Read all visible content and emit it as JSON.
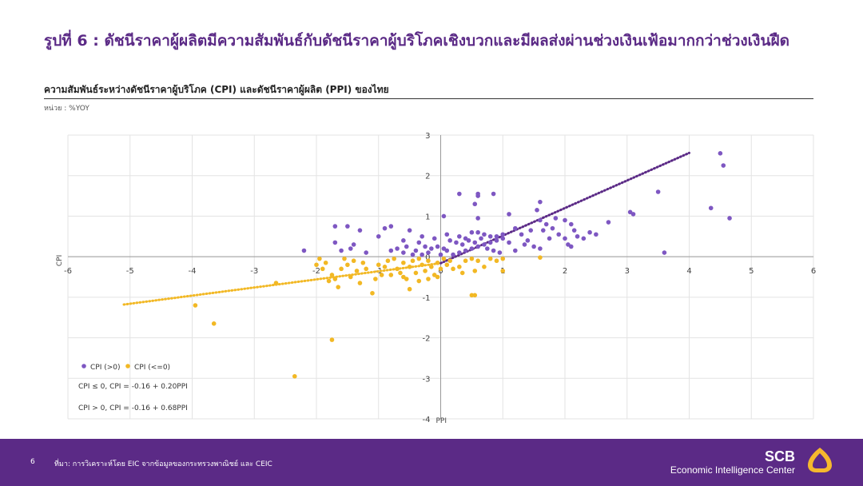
{
  "header": {
    "title": "รูปที่ 6 : ดัชนีราคาผู้ผลิตมีความสัมพันธ์กับดัชนีราคาผู้บริโภคเชิงบวกและมีผลส่งผ่านช่วงเงินเฟ้อมากกว่าช่วงเงินฝืด",
    "subtitle": "ความสัมพันธ์ระหว่างดัชนีราคาผู้บริโภค (CPI) และดัชนีราคาผู้ผลิต (PPI) ของไทย",
    "unit": "หน่วย : %YOY"
  },
  "footer": {
    "page": "6",
    "source": "ที่มา: การวิเคราะห์โดย EIC จากข้อมูลของกระทรวงพาณิชย์ และ CEIC",
    "brand": "SCB",
    "brand_sub": "Economic Intelligence Center"
  },
  "colors": {
    "purple": "#7e57c2",
    "gold": "#f2b824",
    "brand": "#5b2a86",
    "logo_gold": "#f5b82e"
  },
  "chart_data": {
    "type": "scatter",
    "xlabel": "PPI",
    "ylabel": "CPI",
    "xlim": [
      -6,
      6
    ],
    "ylim": [
      -4,
      3
    ],
    "xticks": [
      -6,
      -5,
      -4,
      -3,
      -2,
      -1,
      0,
      1,
      2,
      3,
      4,
      5,
      6
    ],
    "yticks": [
      -4,
      -3,
      -2,
      -1,
      0,
      1,
      2,
      3
    ],
    "grid": true,
    "legend_position": "bottom-left",
    "series": [
      {
        "name": "CPI (>0)",
        "color": "#7e57c2",
        "points": [
          [
            -2.2,
            0.15
          ],
          [
            -1.7,
            0.75
          ],
          [
            -1.5,
            0.75
          ],
          [
            -1.7,
            0.35
          ],
          [
            -1.6,
            0.15
          ],
          [
            -1.45,
            0.2
          ],
          [
            -1.3,
            0.65
          ],
          [
            -1.4,
            0.3
          ],
          [
            -1.2,
            0.1
          ],
          [
            -1.0,
            0.5
          ],
          [
            -0.8,
            0.15
          ],
          [
            -0.7,
            0.2
          ],
          [
            -0.6,
            0.1
          ],
          [
            -0.55,
            0.25
          ],
          [
            -0.45,
            0.05
          ],
          [
            -0.9,
            0.7
          ],
          [
            -0.8,
            0.75
          ],
          [
            -0.4,
            0.15
          ],
          [
            -0.3,
            0.05
          ],
          [
            -0.2,
            0.1
          ],
          [
            -0.1,
            0.45
          ],
          [
            -0.05,
            0.25
          ],
          [
            0.0,
            0.05
          ],
          [
            0.05,
            0.2
          ],
          [
            0.1,
            0.15
          ],
          [
            -0.35,
            0.35
          ],
          [
            -0.6,
            0.4
          ],
          [
            -0.25,
            0.25
          ],
          [
            -0.15,
            0.2
          ],
          [
            -0.5,
            0.65
          ],
          [
            -0.3,
            0.5
          ],
          [
            0.1,
            0.55
          ],
          [
            0.2,
            0.05
          ],
          [
            0.3,
            0.1
          ],
          [
            0.4,
            0.15
          ],
          [
            0.5,
            0.2
          ],
          [
            0.6,
            0.25
          ],
          [
            0.7,
            0.3
          ],
          [
            0.8,
            0.35
          ],
          [
            0.9,
            0.4
          ],
          [
            1.0,
            0.45
          ],
          [
            0.3,
            0.5
          ],
          [
            0.4,
            0.45
          ],
          [
            0.5,
            0.6
          ],
          [
            0.6,
            0.6
          ],
          [
            0.7,
            0.55
          ],
          [
            0.8,
            0.5
          ],
          [
            0.9,
            0.5
          ],
          [
            1.0,
            0.55
          ],
          [
            0.45,
            0.4
          ],
          [
            0.55,
            0.35
          ],
          [
            0.65,
            0.45
          ],
          [
            0.75,
            0.2
          ],
          [
            0.85,
            0.15
          ],
          [
            0.95,
            0.1
          ],
          [
            0.35,
            0.3
          ],
          [
            0.25,
            0.35
          ],
          [
            0.15,
            0.4
          ],
          [
            0.05,
            1.0
          ],
          [
            0.3,
            1.55
          ],
          [
            0.6,
            1.55
          ],
          [
            0.85,
            1.55
          ],
          [
            0.6,
            1.5
          ],
          [
            0.55,
            1.3
          ],
          [
            0.6,
            0.95
          ],
          [
            1.1,
            1.05
          ],
          [
            1.2,
            0.7
          ],
          [
            1.3,
            0.55
          ],
          [
            1.4,
            0.4
          ],
          [
            1.5,
            0.25
          ],
          [
            1.6,
            0.2
          ],
          [
            1.6,
            1.35
          ],
          [
            1.55,
            1.15
          ],
          [
            1.6,
            0.9
          ],
          [
            1.7,
            0.8
          ],
          [
            1.8,
            0.7
          ],
          [
            1.9,
            0.55
          ],
          [
            2.0,
            0.9
          ],
          [
            2.1,
            0.8
          ],
          [
            2.15,
            0.65
          ],
          [
            2.2,
            0.5
          ],
          [
            2.3,
            0.45
          ],
          [
            2.4,
            0.6
          ],
          [
            2.5,
            0.55
          ],
          [
            2.0,
            0.45
          ],
          [
            2.05,
            0.3
          ],
          [
            2.1,
            0.25
          ],
          [
            1.85,
            0.95
          ],
          [
            1.65,
            0.65
          ],
          [
            1.75,
            0.45
          ],
          [
            1.45,
            0.65
          ],
          [
            1.35,
            0.3
          ],
          [
            1.2,
            0.15
          ],
          [
            1.1,
            0.35
          ],
          [
            2.7,
            0.85
          ],
          [
            3.05,
            1.1
          ],
          [
            3.1,
            1.05
          ],
          [
            3.5,
            1.6
          ],
          [
            3.6,
            0.1
          ],
          [
            4.35,
            1.2
          ],
          [
            4.5,
            2.55
          ],
          [
            4.55,
            2.25
          ],
          [
            4.65,
            0.95
          ]
        ]
      },
      {
        "name": "CPI (<=0)",
        "color": "#f2b824",
        "points": [
          [
            -3.95,
            -1.2
          ],
          [
            -3.65,
            -1.65
          ],
          [
            -2.65,
            -0.65
          ],
          [
            -2.35,
            -2.95
          ],
          [
            -1.75,
            -2.05
          ],
          [
            -1.85,
            -0.15
          ],
          [
            -1.9,
            -0.3
          ],
          [
            -1.8,
            -0.6
          ],
          [
            -1.7,
            -0.55
          ],
          [
            -1.65,
            -0.75
          ],
          [
            -1.6,
            -0.3
          ],
          [
            -1.5,
            -0.2
          ],
          [
            -1.45,
            -0.5
          ],
          [
            -1.4,
            -0.1
          ],
          [
            -1.3,
            -0.65
          ],
          [
            -1.2,
            -0.3
          ],
          [
            -1.1,
            -0.9
          ],
          [
            -1.05,
            -0.55
          ],
          [
            -1.0,
            -0.2
          ],
          [
            -0.9,
            -0.25
          ],
          [
            -0.85,
            -0.1
          ],
          [
            -0.8,
            -0.45
          ],
          [
            -0.75,
            -0.05
          ],
          [
            -0.7,
            -0.3
          ],
          [
            -0.6,
            -0.15
          ],
          [
            -0.55,
            -0.55
          ],
          [
            -0.5,
            -0.25
          ],
          [
            -0.45,
            -0.1
          ],
          [
            -0.4,
            -0.4
          ],
          [
            -0.35,
            -0.05
          ],
          [
            -0.3,
            -0.2
          ],
          [
            -0.25,
            -0.35
          ],
          [
            -0.2,
            -0.1
          ],
          [
            -0.15,
            -0.25
          ],
          [
            -0.1,
            -0.45
          ],
          [
            -0.05,
            -0.15
          ],
          [
            0.0,
            -0.3
          ],
          [
            0.05,
            -0.05
          ],
          [
            0.1,
            -0.2
          ],
          [
            0.15,
            -0.1
          ],
          [
            -1.25,
            -0.15
          ],
          [
            -1.55,
            -0.05
          ],
          [
            -1.95,
            -0.05
          ],
          [
            -2.0,
            -0.2
          ],
          [
            -0.65,
            -0.4
          ],
          [
            -0.95,
            -0.45
          ],
          [
            -0.5,
            -0.8
          ],
          [
            0.3,
            -0.25
          ],
          [
            0.4,
            -0.1
          ],
          [
            0.5,
            -0.05
          ],
          [
            0.6,
            -0.1
          ],
          [
            0.7,
            -0.25
          ],
          [
            0.8,
            -0.05
          ],
          [
            0.9,
            -0.1
          ],
          [
            1.0,
            -0.05
          ],
          [
            0.55,
            -0.35
          ],
          [
            0.2,
            -0.3
          ],
          [
            1.0,
            -0.35
          ],
          [
            0.5,
            -0.95
          ],
          [
            0.55,
            -0.95
          ],
          [
            1.6,
            -0.02
          ],
          [
            -0.35,
            -0.6
          ],
          [
            -0.2,
            -0.55
          ],
          [
            -0.05,
            -0.5
          ],
          [
            -0.6,
            -0.5
          ],
          [
            -1.35,
            -0.35
          ],
          [
            0.35,
            -0.4
          ],
          [
            -1.75,
            -0.45
          ]
        ]
      }
    ],
    "trendlines": [
      {
        "label": "CPI ≤ 0, CPI = -0.16 + 0.20PPI",
        "color": "#f2b824",
        "intercept": -0.16,
        "slope": 0.2,
        "x_range": [
          -5.1,
          0
        ]
      },
      {
        "label": "CPI > 0, CPI = -0.16 + 0.68PPI",
        "color": "#5b2a86",
        "intercept": -0.16,
        "slope": 0.68,
        "x_range": [
          0,
          4
        ]
      }
    ]
  }
}
